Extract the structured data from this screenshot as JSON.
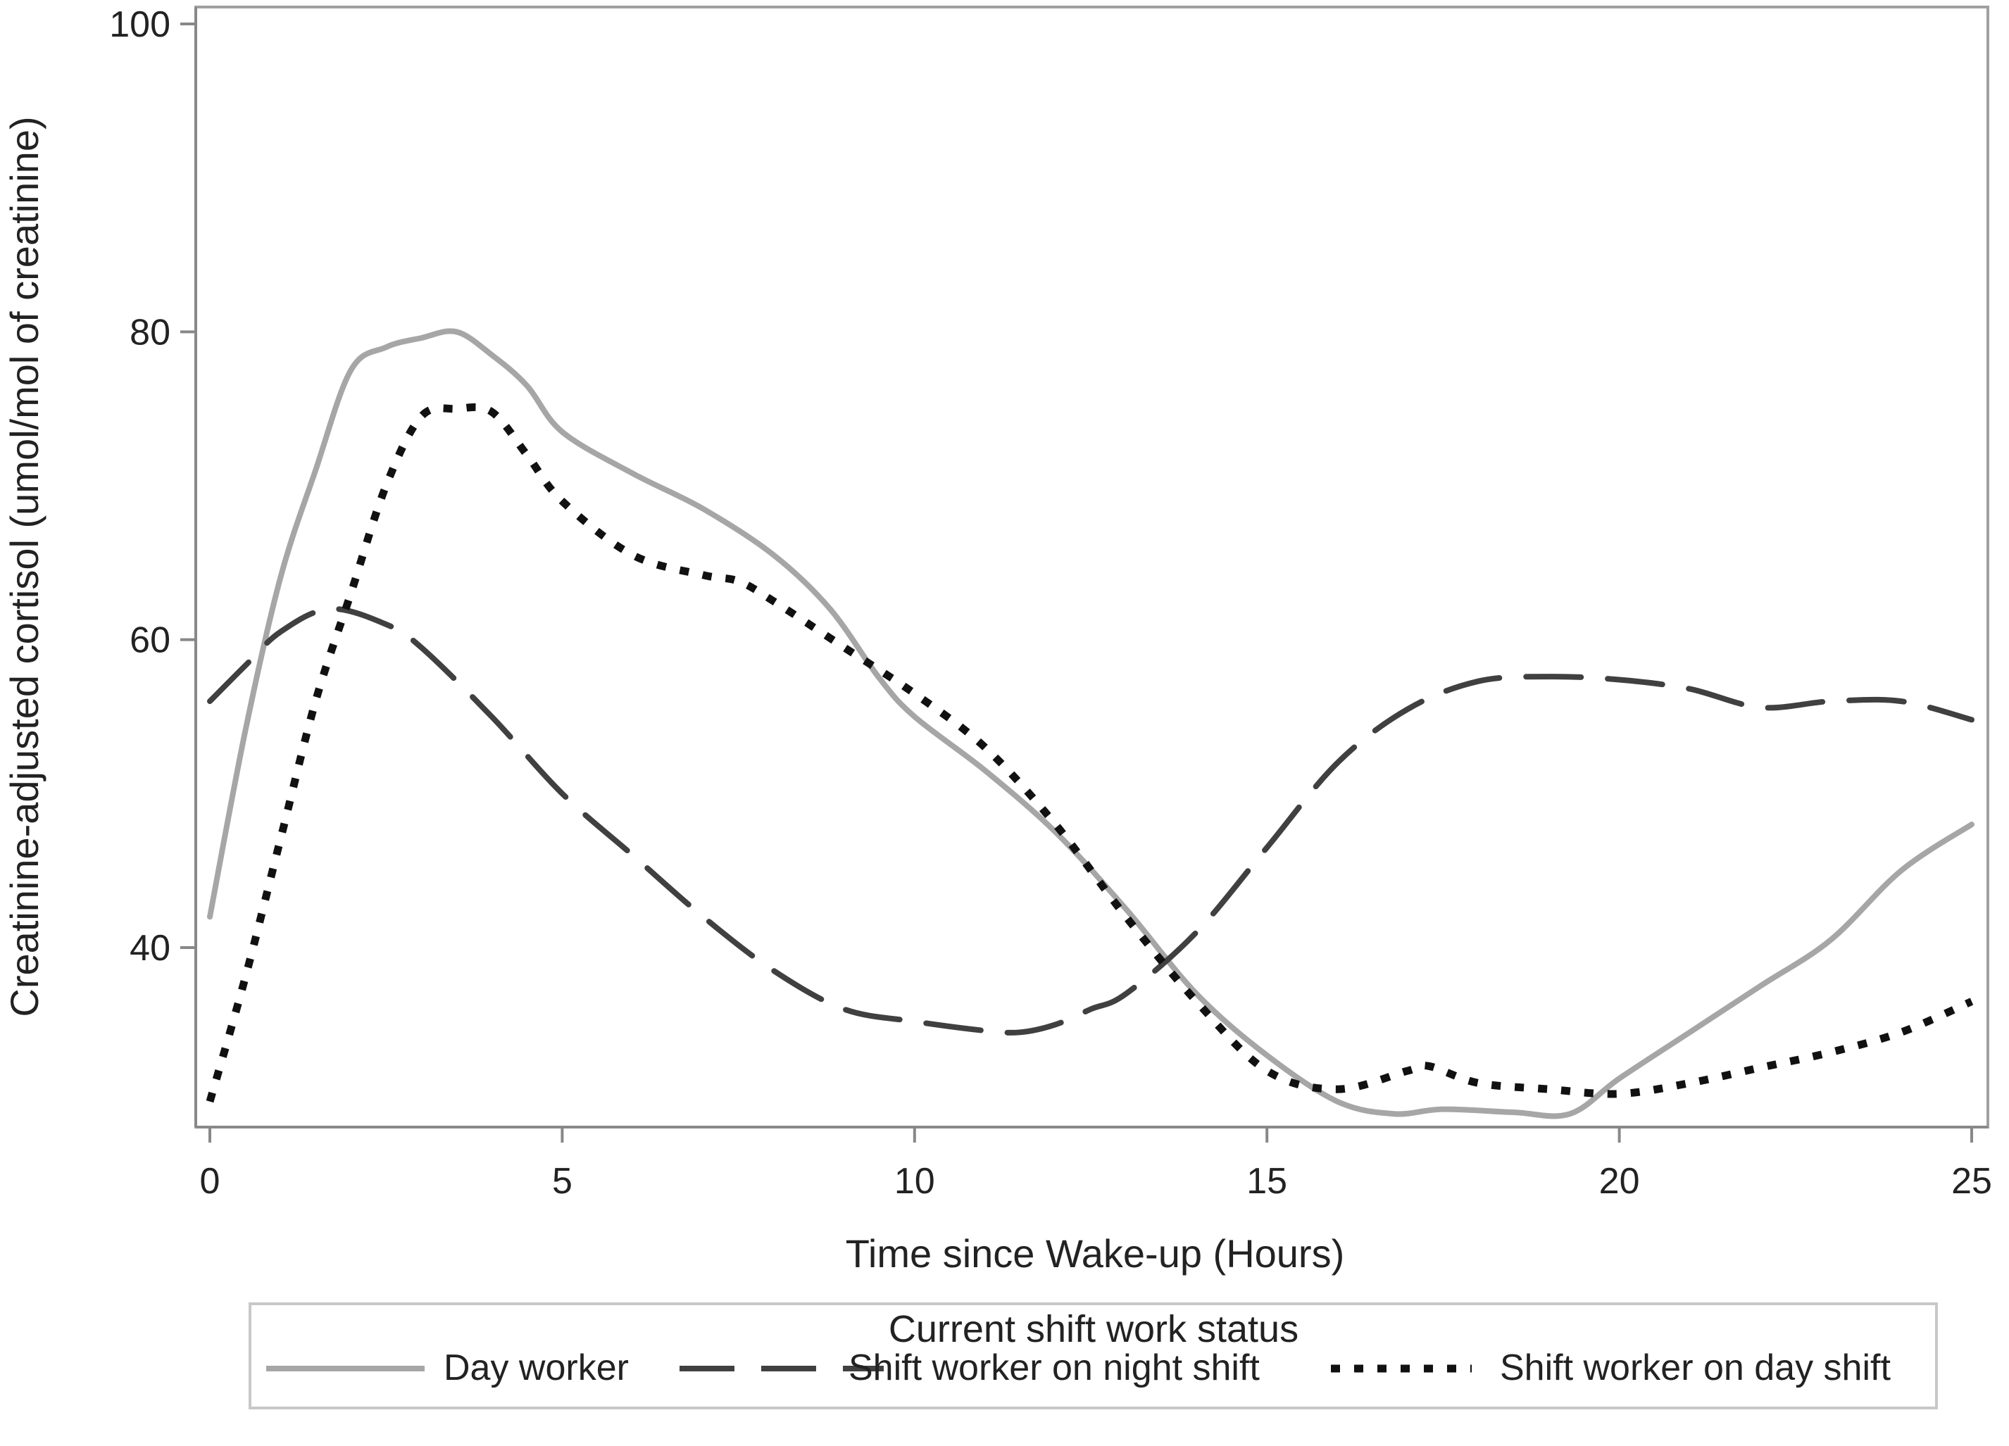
{
  "chart_data": {
    "type": "line",
    "title": "",
    "xlabel": "Time since Wake-up (Hours)",
    "ylabel": "Creatinine-adjusted cortisol (umol/mol of creatinine)",
    "xlim": [
      0,
      25
    ],
    "ylim": [
      28,
      100
    ],
    "xticks": [
      0,
      5,
      10,
      15,
      20,
      25
    ],
    "yticks": [
      40,
      60,
      80,
      100
    ],
    "grid": false,
    "legend": {
      "title": "Current shift work status",
      "position": "bottom"
    },
    "series": [
      {
        "name": "Day worker",
        "style": "solid",
        "color": "#a6a6a6",
        "points": [
          [
            0,
            42
          ],
          [
            0.5,
            54
          ],
          [
            1,
            64
          ],
          [
            1.5,
            71
          ],
          [
            2,
            77.5
          ],
          [
            2.5,
            79
          ],
          [
            3,
            79.6
          ],
          [
            3.5,
            80
          ],
          [
            4,
            78.5
          ],
          [
            4.5,
            76.5
          ],
          [
            5,
            73.5
          ],
          [
            6,
            70.8
          ],
          [
            7,
            68.5
          ],
          [
            8,
            65.5
          ],
          [
            8.8,
            62
          ],
          [
            9.5,
            57.5
          ],
          [
            10,
            55
          ],
          [
            11,
            51.5
          ],
          [
            12,
            47.5
          ],
          [
            13,
            42.5
          ],
          [
            14,
            37
          ],
          [
            15,
            33
          ],
          [
            16,
            30
          ],
          [
            16.8,
            29.2
          ],
          [
            17.5,
            29.5
          ],
          [
            18.5,
            29.3
          ],
          [
            19.3,
            29.2
          ],
          [
            20,
            31.5
          ],
          [
            21,
            34.5
          ],
          [
            22,
            37.5
          ],
          [
            23,
            40.5
          ],
          [
            24,
            45
          ],
          [
            25,
            48
          ]
        ]
      },
      {
        "name": "Shift worker on night shift",
        "style": "dashed",
        "color": "#404040",
        "points": [
          [
            0,
            56
          ],
          [
            0.5,
            58.3
          ],
          [
            1,
            60.5
          ],
          [
            1.7,
            62
          ],
          [
            2.5,
            61
          ],
          [
            3,
            59.5
          ],
          [
            4,
            55
          ],
          [
            5,
            50
          ],
          [
            6,
            46
          ],
          [
            7,
            42
          ],
          [
            8,
            38.5
          ],
          [
            9,
            36
          ],
          [
            10,
            35.2
          ],
          [
            11,
            34.6
          ],
          [
            11.5,
            34.5
          ],
          [
            12,
            35
          ],
          [
            12.5,
            36
          ],
          [
            13,
            37
          ],
          [
            14,
            41
          ],
          [
            15,
            46.5
          ],
          [
            16,
            52
          ],
          [
            17,
            55.5
          ],
          [
            18,
            57.3
          ],
          [
            19,
            57.6
          ],
          [
            20,
            57.4
          ],
          [
            21,
            56.8
          ],
          [
            22,
            55.6
          ],
          [
            23,
            56
          ],
          [
            24,
            56
          ],
          [
            25,
            54.8
          ]
        ]
      },
      {
        "name": "Shift worker on day shift",
        "style": "dotted",
        "color": "#111111",
        "points": [
          [
            0,
            30
          ],
          [
            0.5,
            38
          ],
          [
            1,
            47
          ],
          [
            1.5,
            56
          ],
          [
            2,
            63
          ],
          [
            2.5,
            70
          ],
          [
            3,
            74.5
          ],
          [
            3.5,
            75
          ],
          [
            4,
            74.8
          ],
          [
            4.5,
            72
          ],
          [
            5,
            69
          ],
          [
            6,
            65.5
          ],
          [
            7,
            64.2
          ],
          [
            7.5,
            63.8
          ],
          [
            8,
            62.5
          ],
          [
            9,
            59.5
          ],
          [
            10,
            56.5
          ],
          [
            11,
            53
          ],
          [
            12,
            48
          ],
          [
            13,
            42
          ],
          [
            14,
            36.5
          ],
          [
            15,
            32
          ],
          [
            16,
            30.8
          ],
          [
            17,
            32
          ],
          [
            17.3,
            32.3
          ],
          [
            18,
            31.2
          ],
          [
            19,
            30.8
          ],
          [
            20,
            30.5
          ],
          [
            21,
            31.2
          ],
          [
            22,
            32.2
          ],
          [
            23,
            33.2
          ],
          [
            24,
            34.5
          ],
          [
            25,
            36.5
          ]
        ]
      }
    ]
  }
}
